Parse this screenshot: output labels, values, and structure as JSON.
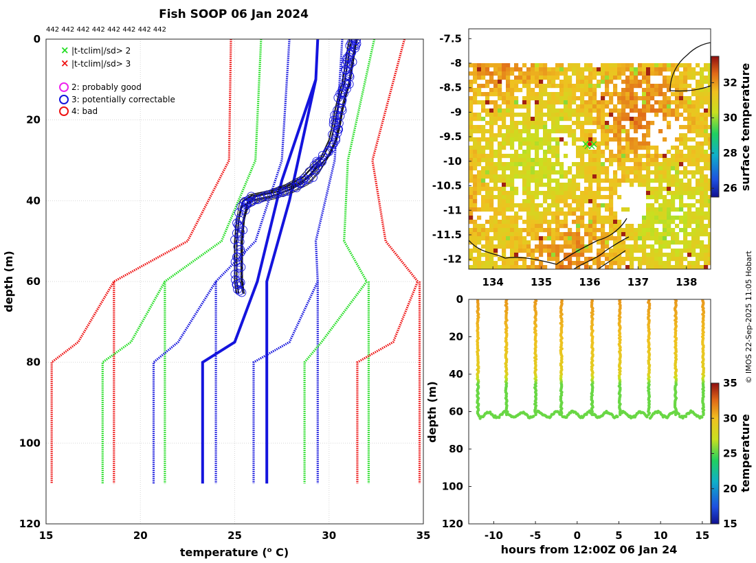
{
  "figure": {
    "title": "Fish SOOP 06 Jan 2024",
    "profile_counts": "442 442 442 442 442 442 442 442",
    "credit": "© IMOS 22-Sep-2025 11:05 Hobart"
  },
  "legend": {
    "items": [
      {
        "marker": "x",
        "color": "#22dd22",
        "label": "|t-tclim|/sd> 2"
      },
      {
        "marker": "x",
        "color": "#ee1111",
        "label": "|t-tclim|/sd> 3"
      },
      {
        "marker": "o",
        "color": "#ee22ee",
        "label": "2: probably good"
      },
      {
        "marker": "o",
        "color": "#1414dd",
        "label": "3: potentially correctable"
      },
      {
        "marker": "o",
        "color": "#ee1111",
        "label": "4: bad"
      }
    ]
  },
  "chart_data": [
    {
      "type": "line",
      "name": "profile-panel",
      "xlabel": "temperature (° C)",
      "xlabel_main": "temperature (",
      "xlabel_sup": "o",
      "xlabel_end": " C)",
      "ylabel": "depth (m)",
      "xlim": [
        15,
        35
      ],
      "ylim": [
        0,
        120
      ],
      "y_reversed": true,
      "xticks": [
        "15",
        "20",
        "25",
        "30",
        "35"
      ],
      "yticks": [
        "0",
        "20",
        "40",
        "60",
        "80",
        "100",
        "120"
      ],
      "grid": true,
      "climatology": {
        "depths": [
          0,
          30,
          50,
          60,
          75,
          80,
          110
        ],
        "colors": {
          "mean": "#1414dd",
          "sd2": "#22dd22",
          "sd3": "#ee1111"
        },
        "series": [
          {
            "name": "sd3-low",
            "color": "#ee1111",
            "style": "dotted",
            "values": [
              24.8,
              24.7,
              22.5,
              18.6,
              16.7,
              15.3,
              15.3
            ]
          },
          {
            "name": "sd3-inner",
            "color": "#ee1111",
            "style": "dotted",
            "values": [
              null,
              null,
              null,
              18.6,
              null,
              null,
              18.6
            ]
          },
          {
            "name": "sd2-low",
            "color": "#22dd22",
            "style": "dotted",
            "values": [
              26.4,
              26.1,
              24.3,
              21.3,
              19.5,
              18.0,
              18.0
            ]
          },
          {
            "name": "sd2-inner",
            "color": "#22dd22",
            "style": "dotted",
            "values": [
              null,
              null,
              null,
              21.3,
              null,
              null,
              21.3
            ]
          },
          {
            "name": "sd1-low",
            "color": "#1414dd",
            "style": "dotted",
            "values": [
              27.9,
              27.5,
              26.1,
              24.0,
              22.0,
              20.7,
              20.7
            ]
          },
          {
            "name": "sd1-inner",
            "color": "#1414dd",
            "style": "dotted",
            "values": [
              null,
              null,
              null,
              24.0,
              null,
              null,
              24.0
            ]
          },
          {
            "name": "sd1-high",
            "color": "#1414dd",
            "style": "dotted",
            "values": [
              30.7,
              30.3,
              29.3,
              29.4,
              27.9,
              26.0,
              26.0
            ]
          },
          {
            "name": "sd1-high-inner",
            "color": "#1414dd",
            "style": "dotted",
            "values": [
              null,
              null,
              null,
              29.4,
              null,
              null,
              29.4
            ]
          },
          {
            "name": "sd2-high",
            "color": "#22dd22",
            "style": "dotted",
            "values": [
              32.4,
              31.0,
              30.8,
              32.0,
              29.6,
              28.7,
              28.7
            ]
          },
          {
            "name": "sd2-high-inner",
            "color": "#22dd22",
            "style": "dotted",
            "values": [
              null,
              null,
              null,
              32.1,
              null,
              null,
              32.1
            ]
          },
          {
            "name": "sd3-high",
            "color": "#ee1111",
            "style": "dotted",
            "values": [
              34.0,
              32.3,
              33.0,
              34.7,
              33.4,
              31.5,
              31.5
            ]
          },
          {
            "name": "sd3-high-inner",
            "color": "#ee1111",
            "style": "dotted",
            "values": [
              null,
              null,
              null,
              34.8,
              null,
              null,
              34.8
            ]
          }
        ],
        "mean_lines": [
          {
            "name": "mean-a",
            "color": "#1414dd",
            "points": [
              [
                29.4,
                0
              ],
              [
                29.3,
                10
              ],
              [
                27.5,
                35
              ],
              [
                26.2,
                60
              ],
              [
                25.0,
                75
              ],
              [
                23.3,
                80
              ],
              [
                23.3,
                110
              ]
            ]
          },
          {
            "name": "mean-b",
            "color": "#1414dd",
            "points": [
              [
                29.3,
                10
              ],
              [
                27.9,
                40
              ],
              [
                26.7,
                60
              ],
              [
                26.7,
                110
              ]
            ]
          }
        ]
      },
      "observed_profile": {
        "color": "#111111",
        "marker_color": "#1414dd",
        "points": [
          [
            31.3,
            0
          ],
          [
            31.2,
            2
          ],
          [
            31.1,
            5
          ],
          [
            31.0,
            8
          ],
          [
            30.9,
            11
          ],
          [
            30.7,
            14
          ],
          [
            30.5,
            18
          ],
          [
            30.4,
            21
          ],
          [
            30.2,
            25
          ],
          [
            29.8,
            29
          ],
          [
            29.3,
            32
          ],
          [
            28.7,
            35
          ],
          [
            27.9,
            37
          ],
          [
            27.0,
            38.5
          ],
          [
            26.0,
            39.5
          ],
          [
            25.5,
            41
          ],
          [
            25.3,
            45
          ],
          [
            25.2,
            50
          ],
          [
            25.2,
            55
          ],
          [
            25.2,
            60
          ],
          [
            25.3,
            63
          ]
        ]
      }
    },
    {
      "type": "heatmap",
      "name": "map-panel",
      "xlim": [
        133.5,
        138.5
      ],
      "ylim": [
        -12.2,
        -7.3
      ],
      "xticks": [
        "134",
        "135",
        "136",
        "137",
        "138"
      ],
      "yticks": [
        "-7.5",
        "-8",
        "-8.5",
        "-9",
        "-9.5",
        "-10",
        "-10.5",
        "-11",
        "-11.5",
        "-12"
      ],
      "colorbar": {
        "label": "surface temperature",
        "min": 25.5,
        "max": 33.5,
        "ticks": [
          "26",
          "28",
          "30",
          "32"
        ]
      },
      "marker": {
        "lon": 136.0,
        "lat": -9.65
      }
    },
    {
      "type": "scatter",
      "name": "time-depth-panel",
      "xlabel": "hours from 12:00Z 06 Jan 24",
      "ylabel": "depth (m)",
      "xlim": [
        -13,
        16
      ],
      "ylim": [
        0,
        120
      ],
      "y_reversed": true,
      "xticks": [
        "-10",
        "-5",
        "0",
        "5",
        "10",
        "15"
      ],
      "yticks": [
        "0",
        "20",
        "40",
        "60",
        "80",
        "100",
        "120"
      ],
      "profile_times": [
        -11.9,
        -8.5,
        -5.0,
        -1.9,
        1.8,
        5.1,
        8.6,
        11.8,
        15.1
      ],
      "bottom_depth": 60,
      "colorbar": {
        "label": "temperature",
        "min": 15,
        "max": 35,
        "ticks": [
          "15",
          "20",
          "25",
          "30",
          "35"
        ]
      }
    }
  ]
}
